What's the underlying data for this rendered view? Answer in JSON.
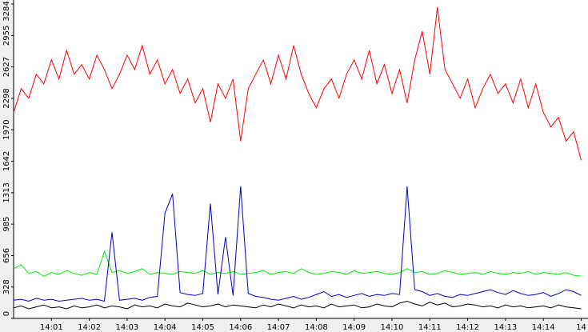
{
  "chart_data": {
    "type": "line",
    "x": [
      0,
      0.2,
      0.4,
      0.6,
      0.8,
      1.0,
      1.2,
      1.4,
      1.6,
      1.8,
      2.0,
      2.2,
      2.4,
      2.6,
      2.8,
      3.0,
      3.2,
      3.4,
      3.6,
      3.8,
      4.0,
      4.2,
      4.4,
      4.6,
      4.8,
      5.0,
      5.2,
      5.4,
      5.6,
      5.8,
      6.0,
      6.2,
      6.4,
      6.6,
      6.8,
      7.0,
      7.2,
      7.4,
      7.6,
      7.8,
      8.0,
      8.2,
      8.4,
      8.6,
      8.8,
      9.0,
      9.2,
      9.4,
      9.6,
      9.8,
      10.0,
      10.2,
      10.4,
      10.6,
      10.8,
      11.0,
      11.2,
      11.4,
      11.6,
      11.8,
      12.0,
      12.2,
      12.4,
      12.6,
      12.8,
      13.0,
      13.2,
      13.4,
      13.6,
      13.8,
      14.0,
      14.2,
      14.4,
      14.6,
      14.8,
      15.0
    ],
    "series": [
      {
        "color": "#ff0000",
        "values": [
          2150,
          2400,
          2300,
          2550,
          2450,
          2700,
          2500,
          2800,
          2550,
          2650,
          2500,
          2750,
          2600,
          2400,
          2550,
          2750,
          2600,
          2850,
          2550,
          2700,
          2450,
          2600,
          2350,
          2500,
          2250,
          2400,
          2050,
          2450,
          2300,
          2500,
          1850,
          2400,
          2550,
          2700,
          2450,
          2750,
          2500,
          2850,
          2550,
          2350,
          2200,
          2400,
          2500,
          2300,
          2550,
          2700,
          2500,
          2800,
          2450,
          2650,
          2350,
          2600,
          2250,
          2700,
          3000,
          2550,
          3250,
          2600,
          2450,
          2300,
          2500,
          2200,
          2400,
          2550,
          2350,
          2450,
          2250,
          2500,
          2200,
          2450,
          2150,
          2000,
          2100,
          1850,
          1950,
          1650
        ]
      },
      {
        "color": "#00ee00",
        "values": [
          520,
          560,
          470,
          490,
          440,
          480,
          460,
          500,
          470,
          450,
          480,
          460,
          700,
          480,
          500,
          470,
          490,
          520,
          460,
          480,
          470,
          460,
          490,
          480,
          470,
          500,
          460,
          480,
          470,
          490,
          460,
          470,
          480,
          500,
          460,
          480,
          490,
          470,
          520,
          480,
          460,
          470,
          490,
          480,
          460,
          500,
          470,
          480,
          490,
          470,
          460,
          480,
          520,
          480,
          490,
          460,
          470,
          500,
          480,
          460,
          470,
          480,
          460,
          490,
          470,
          460,
          480,
          470,
          490,
          460,
          480,
          470,
          460,
          480,
          450,
          440
        ]
      },
      {
        "color": "#0000cc",
        "values": [
          190,
          200,
          180,
          210,
          190,
          200,
          180,
          190,
          200,
          210,
          190,
          200,
          180,
          900,
          190,
          200,
          210,
          190,
          220,
          230,
          1100,
          1300,
          270,
          250,
          240,
          260,
          1200,
          250,
          850,
          240,
          1380,
          260,
          230,
          220,
          200,
          190,
          210,
          230,
          200,
          220,
          250,
          280,
          230,
          250,
          220,
          240,
          260,
          230,
          250,
          240,
          260,
          250,
          1380,
          300,
          280,
          240,
          260,
          230,
          220,
          250,
          240,
          260,
          280,
          300,
          270,
          250,
          290,
          260,
          240,
          250,
          270,
          230,
          260,
          300,
          280,
          240
        ]
      },
      {
        "color": "#000000",
        "values": [
          110,
          130,
          100,
          120,
          140,
          110,
          120,
          100,
          130,
          110,
          120,
          140,
          110,
          130,
          120,
          100,
          140,
          120,
          130,
          110,
          150,
          130,
          120,
          160,
          140,
          120,
          130,
          150,
          120,
          140,
          130,
          120,
          110,
          140,
          120,
          150,
          130,
          110,
          140,
          120,
          130,
          110,
          150,
          120,
          130,
          140,
          110,
          120,
          150,
          130,
          120,
          160,
          180,
          150,
          130,
          170,
          140,
          160,
          120,
          130,
          150,
          140,
          120,
          130,
          110,
          140,
          120,
          130,
          110,
          120,
          130,
          110,
          140,
          120,
          110,
          100
        ]
      }
    ],
    "xlim": [
      0,
      15.18
    ],
    "xticks": [
      {
        "value": 1,
        "label": "14:01"
      },
      {
        "value": 2,
        "label": "14:02"
      },
      {
        "value": 3,
        "label": "14:03"
      },
      {
        "value": 4,
        "label": "14:04"
      },
      {
        "value": 5,
        "label": "14:05"
      },
      {
        "value": 6,
        "label": "14:06"
      },
      {
        "value": 7,
        "label": "14:07"
      },
      {
        "value": 8,
        "label": "14:08"
      },
      {
        "value": 9,
        "label": "14:09"
      },
      {
        "value": 10,
        "label": "14:10"
      },
      {
        "value": 11,
        "label": "14:11"
      },
      {
        "value": 12,
        "label": "14:12"
      },
      {
        "value": 13,
        "label": "14:13"
      },
      {
        "value": 14,
        "label": "14:14"
      },
      {
        "value": 15,
        "label": "14"
      }
    ],
    "ylim": [
      0,
      3284
    ],
    "yticks": [
      0,
      328,
      656,
      985,
      1313,
      1642,
      1970,
      2298,
      2627,
      2955,
      3284
    ]
  }
}
